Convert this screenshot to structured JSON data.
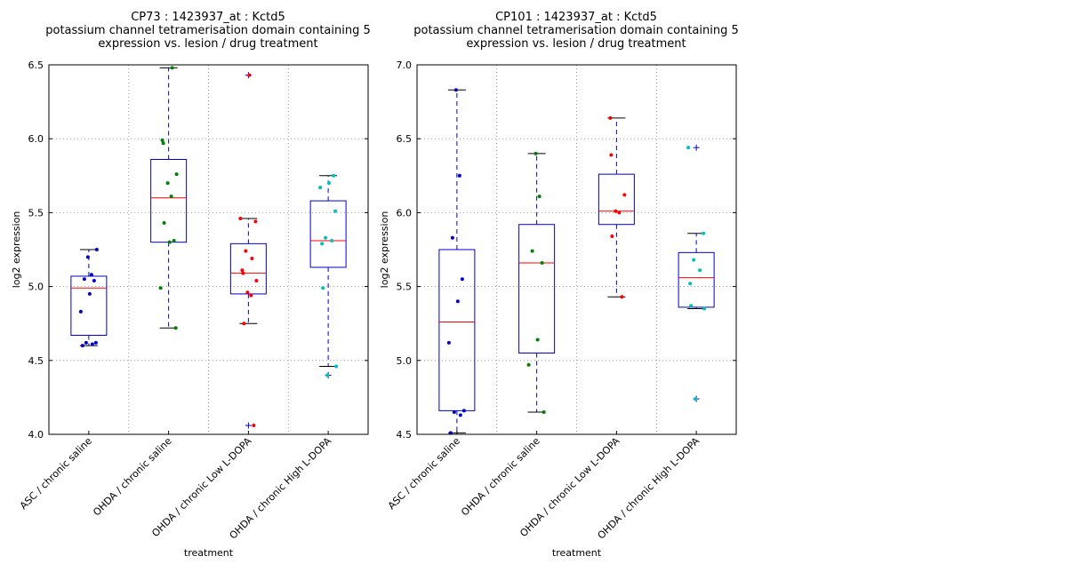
{
  "chart_data": [
    {
      "type": "box",
      "title_lines": [
        "CP73 : 1423937_at : Kctd5",
        "potassium channel tetramerisation domain containing 5",
        "expression vs. lesion / drug treatment"
      ],
      "xlabel": "treatment",
      "ylabel": "log2 expression",
      "ylim": [
        4.0,
        6.5
      ],
      "yticks": [
        "4.0",
        "4.5",
        "5.0",
        "5.5",
        "6.0",
        "6.5"
      ],
      "grid": true,
      "categories": [
        "ASC / chronic saline",
        "OHDA / chronic saline",
        "OHDA / chronic Low L-DOPA",
        "OHDA / chronic High L-DOPA"
      ],
      "boxes": [
        {
          "q1": 4.67,
          "median": 4.99,
          "q3": 5.07,
          "whisker_low": 4.6,
          "whisker_high": 5.25,
          "outliers": [],
          "color": "#0000cc",
          "points": [
            4.6,
            4.61,
            4.62,
            4.62,
            4.83,
            4.95,
            5.04,
            5.05,
            5.08,
            5.2,
            5.25
          ]
        },
        {
          "q1": 5.3,
          "median": 5.6,
          "q3": 5.86,
          "whisker_low": 4.72,
          "whisker_high": 6.48,
          "outliers": [],
          "color": "#008000",
          "points": [
            4.72,
            4.99,
            5.3,
            5.31,
            5.43,
            5.61,
            5.7,
            5.76,
            5.97,
            5.99,
            6.48
          ]
        },
        {
          "q1": 4.95,
          "median": 5.09,
          "q3": 5.29,
          "whisker_low": 4.75,
          "whisker_high": 5.46,
          "outliers": [
            6.43,
            4.06
          ],
          "color": "#ff0000",
          "points": [
            4.06,
            4.75,
            4.94,
            4.96,
            5.04,
            5.09,
            5.11,
            5.19,
            5.24,
            5.44,
            5.46,
            6.43
          ]
        },
        {
          "q1": 5.13,
          "median": 5.31,
          "q3": 5.58,
          "whisker_low": 4.46,
          "whisker_high": 5.75,
          "outliers": [
            4.4
          ],
          "color": "#00bfbf",
          "points": [
            4.4,
            4.46,
            4.99,
            5.29,
            5.31,
            5.33,
            5.51,
            5.67,
            5.7,
            5.75
          ]
        }
      ]
    },
    {
      "type": "box",
      "title_lines": [
        "CP101 : 1423937_at : Kctd5",
        "potassium channel tetramerisation domain containing 5",
        "expression vs. lesion / drug treatment"
      ],
      "xlabel": "treatment",
      "ylabel": "log2 expression",
      "ylim": [
        4.5,
        7.0
      ],
      "yticks": [
        "4.5",
        "5.0",
        "5.5",
        "6.0",
        "6.5",
        "7.0"
      ],
      "grid": true,
      "categories": [
        "ASC / chronic saline",
        "OHDA / chronic saline",
        "OHDA / chronic Low L-DOPA",
        "OHDA / chronic High L-DOPA"
      ],
      "boxes": [
        {
          "q1": 4.66,
          "median": 5.26,
          "q3": 5.75,
          "whisker_low": 4.51,
          "whisker_high": 6.83,
          "outliers": [],
          "color": "#0000cc",
          "points": [
            4.51,
            4.63,
            4.65,
            4.66,
            5.12,
            5.4,
            5.55,
            5.83,
            6.25,
            6.83
          ]
        },
        {
          "q1": 5.05,
          "median": 5.66,
          "q3": 5.92,
          "whisker_low": 4.65,
          "whisker_high": 6.4,
          "outliers": [],
          "color": "#008000",
          "points": [
            4.65,
            4.97,
            5.14,
            5.66,
            5.74,
            6.11,
            6.4
          ]
        },
        {
          "q1": 5.92,
          "median": 6.01,
          "q3": 6.26,
          "whisker_low": 5.43,
          "whisker_high": 6.64,
          "outliers": [],
          "color": "#ff0000",
          "points": [
            5.43,
            5.84,
            6.0,
            6.01,
            6.12,
            6.39,
            6.64
          ]
        },
        {
          "q1": 5.36,
          "median": 5.56,
          "q3": 5.73,
          "whisker_low": 5.35,
          "whisker_high": 5.86,
          "outliers": [
            6.44,
            4.74
          ],
          "color": "#00bfbf",
          "points": [
            4.74,
            5.35,
            5.37,
            5.52,
            5.61,
            5.68,
            5.86,
            6.44
          ]
        }
      ]
    }
  ]
}
